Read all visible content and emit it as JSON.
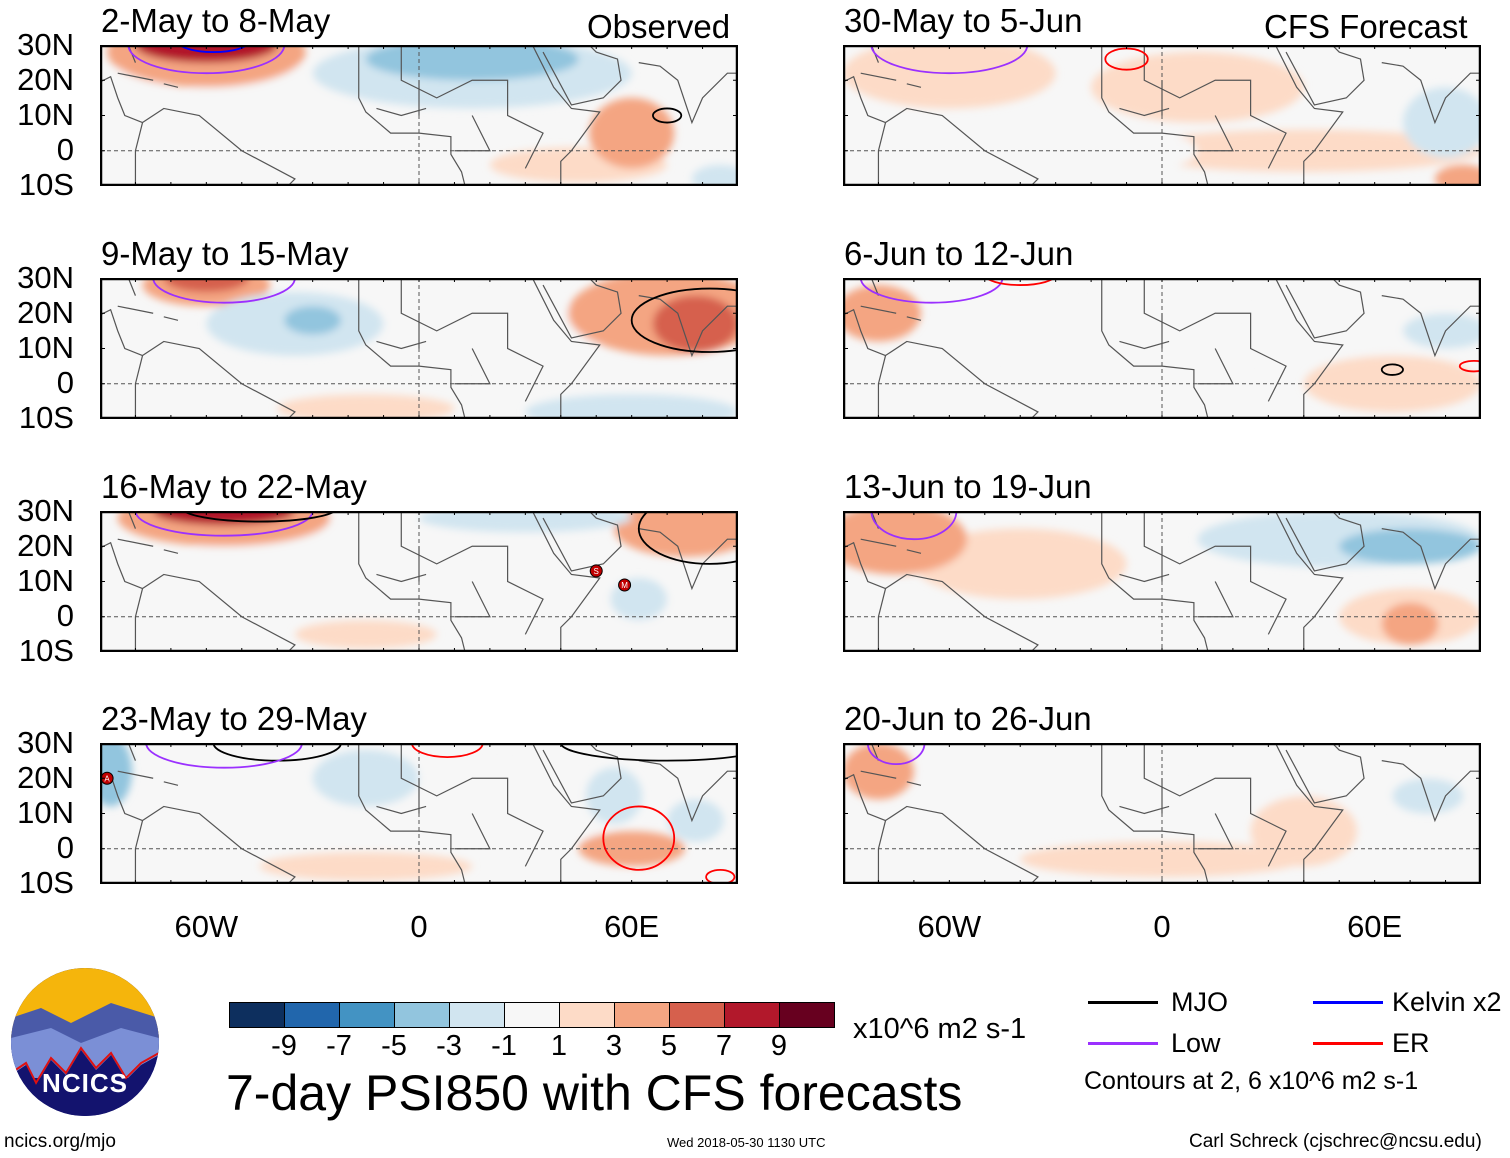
{
  "header": {
    "left_label": "Observed",
    "right_label": "CFS Forecast"
  },
  "lat_labels": [
    "30N",
    "20N",
    "10N",
    "0",
    "10S"
  ],
  "lon_labels": [
    "60W",
    "0",
    "60E"
  ],
  "chart_data": {
    "type": "heatmap",
    "title": "7-day PSI850 with CFS forecasts",
    "units": "x10^6 m2 s-1",
    "xlim": [
      -90,
      90
    ],
    "ylim": [
      -10,
      30
    ],
    "colorbar": {
      "ticks": [
        "-9",
        "-7",
        "-5",
        "-3",
        "-1",
        "1",
        "3",
        "5",
        "7",
        "9"
      ],
      "colors": [
        "#0d2f5e",
        "#2166ac",
        "#4393c3",
        "#92c5de",
        "#d1e5f0",
        "#f7f7f7",
        "#fddbc7",
        "#f4a582",
        "#d6604d",
        "#b2182b",
        "#67001f"
      ]
    },
    "contour_colors": {
      "mjo": "#000000",
      "kelvin": "#0000ff",
      "low": "#9b30ff",
      "er": "#ff0000"
    },
    "panels": [
      {
        "title": "2-May to 8-May",
        "col": 0,
        "row": 0,
        "blobs": [
          [
            -60,
            28,
            28,
            10,
            3
          ],
          [
            -60,
            30,
            20,
            5,
            7
          ],
          [
            15,
            22,
            45,
            10,
            -3
          ],
          [
            15,
            26,
            30,
            6,
            -5
          ],
          [
            -80,
            15,
            10,
            10,
            -1
          ],
          [
            60,
            5,
            12,
            10,
            3
          ],
          [
            45,
            -4,
            25,
            5,
            1
          ],
          [
            -40,
            15,
            25,
            10,
            -1
          ],
          [
            85,
            -8,
            8,
            4,
            -3
          ]
        ],
        "contours": [
          [
            "low",
            -60,
            30,
            22,
            8
          ],
          [
            "kelvin",
            -58,
            31,
            10,
            3
          ],
          [
            "mjo",
            70,
            10,
            4,
            2
          ]
        ],
        "storms": []
      },
      {
        "title": "9-May to 15-May",
        "col": 0,
        "row": 1,
        "blobs": [
          [
            -60,
            28,
            18,
            6,
            3
          ],
          [
            -60,
            30,
            12,
            4,
            5
          ],
          [
            -35,
            17,
            25,
            9,
            -3
          ],
          [
            -30,
            18,
            8,
            4,
            -5
          ],
          [
            70,
            20,
            28,
            12,
            3
          ],
          [
            78,
            17,
            12,
            8,
            5
          ],
          [
            60,
            -8,
            30,
            5,
            -3
          ],
          [
            -15,
            -7,
            25,
            4,
            1
          ],
          [
            20,
            15,
            35,
            10,
            -1
          ]
        ],
        "contours": [
          [
            "low",
            -55,
            30,
            20,
            7
          ],
          [
            "mjo",
            82,
            18,
            22,
            9
          ]
        ],
        "storms": []
      },
      {
        "title": "16-May to 22-May",
        "col": 0,
        "row": 2,
        "blobs": [
          [
            -55,
            28,
            30,
            8,
            3
          ],
          [
            -55,
            30,
            20,
            4,
            7
          ],
          [
            -25,
            15,
            40,
            14,
            -1
          ],
          [
            75,
            25,
            20,
            8,
            3
          ],
          [
            62,
            5,
            8,
            6,
            -3
          ],
          [
            60,
            0,
            20,
            10,
            -1
          ],
          [
            -15,
            -5,
            20,
            4,
            1
          ],
          [
            30,
            28,
            30,
            4,
            -3
          ]
        ],
        "contours": [
          [
            "low",
            -55,
            30,
            25,
            7
          ],
          [
            "mjo",
            -45,
            31,
            22,
            4
          ],
          [
            "mjo",
            82,
            25,
            20,
            10
          ]
        ],
        "storms": [
          [
            "S",
            50,
            13
          ],
          [
            "M",
            58,
            9
          ]
        ]
      },
      {
        "title": "23-May to 29-May",
        "col": 0,
        "row": 3,
        "blobs": [
          [
            -87,
            22,
            6,
            10,
            -5
          ],
          [
            -15,
            20,
            15,
            8,
            -3
          ],
          [
            55,
            15,
            8,
            8,
            -3
          ],
          [
            60,
            0,
            15,
            5,
            3
          ],
          [
            -15,
            -5,
            30,
            4,
            1
          ],
          [
            78,
            8,
            8,
            6,
            -3
          ],
          [
            20,
            12,
            40,
            12,
            -1
          ]
        ],
        "contours": [
          [
            "er",
            62,
            3,
            10,
            9
          ],
          [
            "er",
            8,
            30,
            10,
            4
          ],
          [
            "mjo",
            -40,
            30,
            18,
            5
          ],
          [
            "low",
            -55,
            30,
            22,
            7
          ],
          [
            "mjo",
            70,
            30,
            30,
            5
          ],
          [
            "er",
            85,
            -8,
            4,
            2
          ]
        ],
        "storms": [
          [
            "A",
            -88,
            20
          ]
        ]
      },
      {
        "title": "30-May to 5-Jun",
        "col": 1,
        "row": 0,
        "blobs": [
          [
            -60,
            22,
            30,
            10,
            1
          ],
          [
            10,
            18,
            30,
            10,
            1
          ],
          [
            40,
            0,
            50,
            6,
            1
          ],
          [
            80,
            8,
            12,
            10,
            -3
          ],
          [
            85,
            -8,
            8,
            4,
            3
          ],
          [
            -10,
            0,
            20,
            6,
            -1
          ]
        ],
        "contours": [
          [
            "low",
            -60,
            30,
            22,
            8
          ],
          [
            "er",
            -10,
            26,
            6,
            3
          ]
        ],
        "storms": []
      },
      {
        "title": "6-Jun to 12-Jun",
        "col": 1,
        "row": 1,
        "blobs": [
          [
            -80,
            20,
            12,
            8,
            3
          ],
          [
            60,
            18,
            35,
            10,
            -1
          ],
          [
            80,
            15,
            12,
            5,
            -3
          ],
          [
            -10,
            0,
            35,
            10,
            -1
          ],
          [
            -25,
            15,
            20,
            8,
            -1
          ],
          [
            65,
            0,
            25,
            8,
            1
          ]
        ],
        "contours": [
          [
            "low",
            -65,
            30,
            20,
            7
          ],
          [
            "er",
            -40,
            31,
            10,
            3
          ],
          [
            "mjo",
            65,
            4,
            3,
            1.5
          ],
          [
            "er",
            88,
            5,
            4,
            1.5
          ]
        ],
        "storms": []
      },
      {
        "title": "13-Jun to 19-Jun",
        "col": 1,
        "row": 2,
        "blobs": [
          [
            -75,
            22,
            20,
            10,
            3
          ],
          [
            50,
            22,
            40,
            8,
            -3
          ],
          [
            70,
            20,
            20,
            5,
            -5
          ],
          [
            70,
            0,
            20,
            8,
            1
          ],
          [
            70,
            -2,
            8,
            6,
            3
          ],
          [
            -40,
            15,
            30,
            10,
            1
          ]
        ],
        "contours": [
          [
            "low",
            -70,
            30,
            12,
            8
          ]
        ],
        "storms": []
      },
      {
        "title": "20-Jun to 26-Jun",
        "col": 1,
        "row": 3,
        "blobs": [
          [
            -80,
            22,
            10,
            8,
            3
          ],
          [
            50,
            20,
            40,
            8,
            -1
          ],
          [
            40,
            5,
            15,
            10,
            1
          ],
          [
            75,
            15,
            10,
            5,
            -3
          ],
          [
            0,
            -3,
            40,
            5,
            1
          ]
        ],
        "contours": [
          [
            "low",
            -75,
            30,
            8,
            6
          ]
        ],
        "storms": []
      }
    ]
  },
  "legend": {
    "mjo": "MJO",
    "kelvin": "Kelvin x2",
    "low": "Low",
    "er": "ER",
    "contours_note": "Contours at 2, 6 x10^6 m2 s-1"
  },
  "logo": {
    "text": "NCICS"
  },
  "footer": {
    "url": "ncics.org/mjo",
    "timestamp": "Wed 2018-05-30 1130 UTC",
    "credit": "Carl Schreck (cjschrec@ncsu.edu)"
  }
}
